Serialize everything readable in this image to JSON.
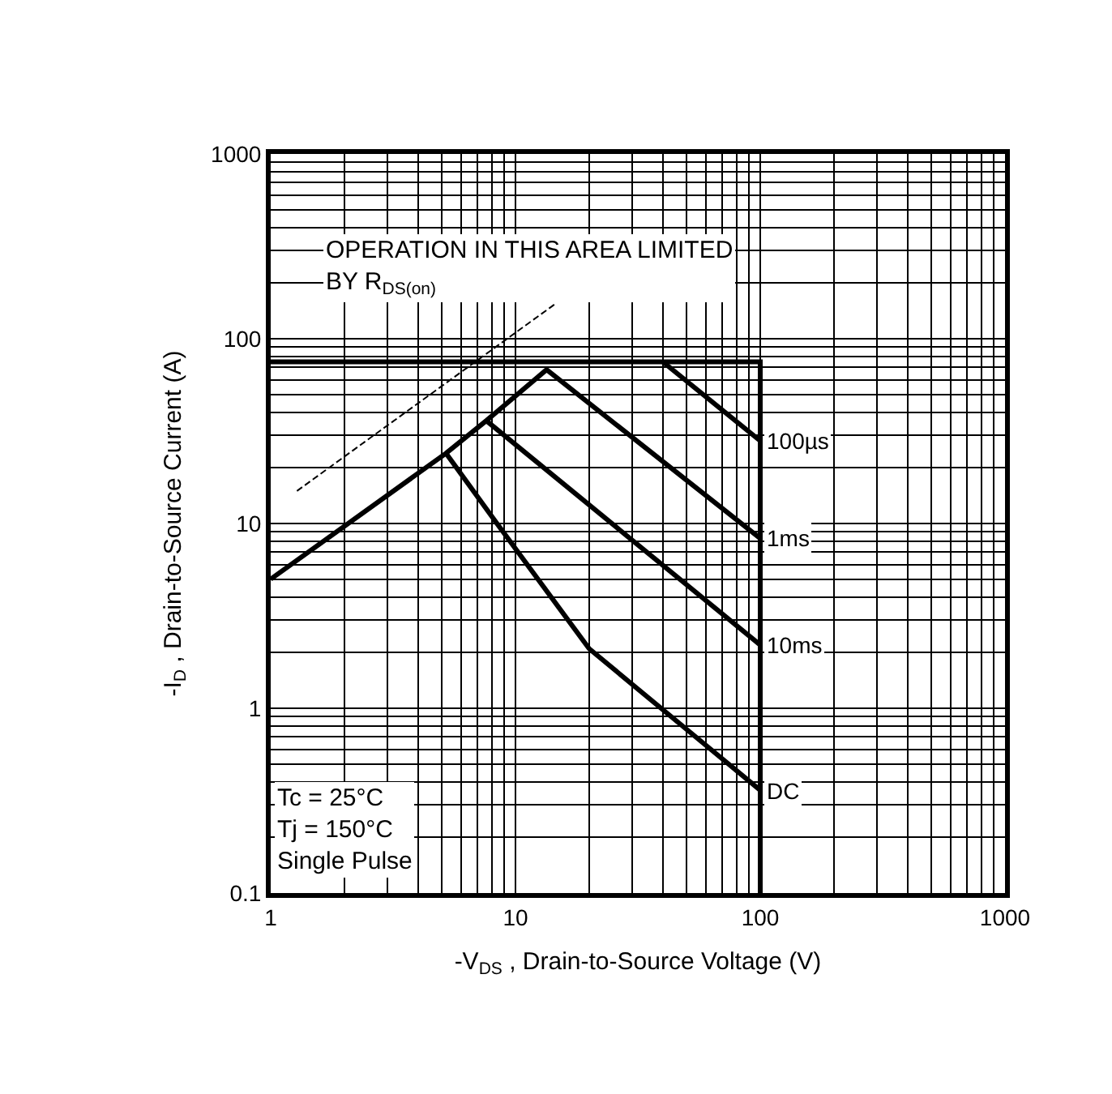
{
  "chart_data": {
    "type": "line",
    "xlabel": "-V$_{DS}$ , Drain-to-Source Voltage (V)",
    "ylabel": "-I$_{D}$ , Drain-to-Source Current (A)",
    "log": "xy",
    "grid": true,
    "legend": false,
    "marker": "none",
    "line_style": "solid",
    "xlim": [
      1,
      1000
    ],
    "xticks": [
      1,
      10,
      100,
      1000
    ],
    "ylim": [
      0.1,
      1000
    ],
    "yticks": [
      0.1,
      1,
      10,
      100,
      1000
    ],
    "series": [
      {
        "color": "#000000",
        "x": [
          1,
          100,
          100
        ],
        "values": [
          75,
          75,
          0.1
        ]
      },
      {
        "name": "100µs",
        "color": "#000000",
        "x": [
          40,
          100
        ],
        "values": [
          75,
          28
        ]
      },
      {
        "name": "1ms",
        "color": "#000000",
        "x": [
          1,
          5.2,
          7.6,
          13.4,
          100
        ],
        "values": [
          5,
          24,
          36,
          68,
          8.3
        ]
      },
      {
        "name": "10ms",
        "color": "#000000",
        "x": [
          7.6,
          100
        ],
        "values": [
          36,
          2.2
        ]
      },
      {
        "name": "DC",
        "color": "#000000",
        "x": [
          5.2,
          8.4,
          20,
          60,
          100
        ],
        "values": [
          24,
          10,
          2.1,
          0.63,
          0.36
        ]
      },
      {
        "color": "#000000",
        "line_style": "dashed",
        "x": [
          1.28,
          14.7
        ],
        "values": [
          15,
          156
        ]
      }
    ],
    "annotations": [
      "OPERATION IN THIS AREA LIMITED\nBY R$_{DS(on)}$",
      "Tc = 25°C\nTj = 150°C\nSingle Pulse"
    ]
  }
}
